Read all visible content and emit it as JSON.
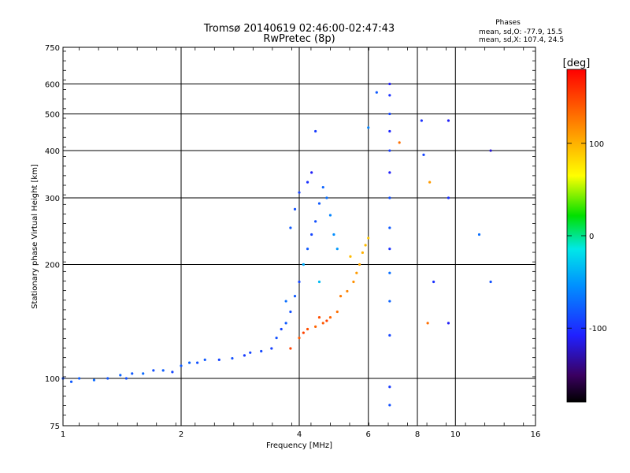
{
  "chart_data": {
    "type": "scatter",
    "title": "Tromsø 20140619 02:46:00-02:47:43",
    "subtitle": "RwPretec (8p)",
    "xlabel": "Frequency [MHz]",
    "ylabel": "Stationary phase Virtual Height [km]",
    "x_scale": "log",
    "y_scale": "log",
    "xlim": [
      1,
      16
    ],
    "ylim": [
      75,
      750
    ],
    "x_ticks": [
      1,
      2,
      4,
      6,
      8,
      10,
      16
    ],
    "x_tick_labels": [
      "1",
      "2",
      "4",
      "6",
      "8",
      "10",
      "16"
    ],
    "y_ticks": [
      75,
      100,
      200,
      300,
      400,
      500,
      600,
      750
    ],
    "y_tick_labels": [
      "75",
      "100",
      "200",
      "300",
      "400",
      "500",
      "600",
      "750"
    ],
    "grid": true,
    "colorbar": {
      "label": "[deg]",
      "range": [
        -180,
        180
      ],
      "ticks": [
        100,
        0,
        -100
      ],
      "tick_labels": [
        "100",
        "0",
        "-100"
      ]
    },
    "phase_stats": {
      "heading": "Phases",
      "o_line": "mean, sd,O: -77.9, 15.5",
      "x_line": "mean, sd,X: 107.4, 24.5"
    },
    "series": [
      {
        "points": [
          [
            1.0,
            100,
            -85
          ],
          [
            1.05,
            98,
            -80
          ],
          [
            1.1,
            100,
            -78
          ],
          [
            1.2,
            99,
            -72
          ],
          [
            1.3,
            100,
            -82
          ],
          [
            1.4,
            102,
            -75
          ],
          [
            1.45,
            100,
            -85
          ],
          [
            1.5,
            103,
            -80
          ],
          [
            1.6,
            103,
            -72
          ],
          [
            1.7,
            105,
            -85
          ],
          [
            1.8,
            105,
            -78
          ],
          [
            1.9,
            104,
            -90
          ],
          [
            2.0,
            108,
            -80
          ],
          [
            2.1,
            110,
            -75
          ],
          [
            2.2,
            110,
            -85
          ],
          [
            2.3,
            112,
            -80
          ],
          [
            2.5,
            112,
            -90
          ],
          [
            2.7,
            113,
            -85
          ],
          [
            2.9,
            115,
            -95
          ],
          [
            3.0,
            117,
            -90
          ],
          [
            3.2,
            118,
            -88
          ],
          [
            3.4,
            120,
            -92
          ],
          [
            3.5,
            128,
            -85
          ],
          [
            3.6,
            135,
            -90
          ],
          [
            3.7,
            140,
            -80
          ],
          [
            3.8,
            150,
            -85
          ],
          [
            3.9,
            165,
            -80
          ],
          [
            4.0,
            180,
            -88
          ],
          [
            4.1,
            200,
            -85
          ],
          [
            4.2,
            220,
            -80
          ],
          [
            4.3,
            240,
            -90
          ],
          [
            4.4,
            260,
            -85
          ],
          [
            4.5,
            290,
            -80
          ],
          [
            4.6,
            320,
            -75
          ],
          [
            4.7,
            300,
            -70
          ],
          [
            4.8,
            270,
            -60
          ],
          [
            4.9,
            240,
            -55
          ],
          [
            5.0,
            220,
            -50
          ],
          [
            4.2,
            330,
            -100
          ],
          [
            4.3,
            350,
            -110
          ],
          [
            4.4,
            450,
            -95
          ],
          [
            3.9,
            280,
            -85
          ],
          [
            3.8,
            250,
            -80
          ],
          [
            4.0,
            310,
            -90
          ],
          [
            4.1,
            200,
            -40
          ],
          [
            4.5,
            180,
            -35
          ],
          [
            3.7,
            160,
            -70
          ]
        ]
      },
      {
        "points": [
          [
            4.0,
            128,
            140
          ],
          [
            4.1,
            132,
            150
          ],
          [
            4.2,
            135,
            145
          ],
          [
            4.4,
            137,
            135
          ],
          [
            4.6,
            140,
            140
          ],
          [
            4.8,
            145,
            135
          ],
          [
            5.0,
            150,
            130
          ],
          [
            4.5,
            145,
            145
          ],
          [
            4.7,
            142,
            150
          ],
          [
            5.1,
            165,
            125
          ],
          [
            5.3,
            170,
            120
          ],
          [
            5.5,
            180,
            115
          ],
          [
            5.6,
            190,
            110
          ],
          [
            5.7,
            200,
            105
          ],
          [
            5.8,
            215,
            100
          ],
          [
            5.9,
            225,
            95
          ],
          [
            6.0,
            235,
            90
          ],
          [
            5.4,
            210,
            95
          ],
          [
            3.8,
            120,
            150
          ]
        ]
      },
      {
        "points": [
          [
            6.8,
            600,
            -110
          ],
          [
            6.8,
            560,
            -100
          ],
          [
            6.8,
            500,
            -90
          ],
          [
            6.8,
            450,
            -105
          ],
          [
            6.8,
            400,
            -95
          ],
          [
            6.8,
            350,
            -110
          ],
          [
            6.8,
            300,
            -85
          ],
          [
            6.8,
            250,
            -80
          ],
          [
            6.8,
            220,
            -100
          ],
          [
            6.8,
            190,
            -70
          ],
          [
            6.8,
            160,
            -75
          ],
          [
            6.8,
            130,
            -90
          ],
          [
            6.8,
            95,
            -95
          ],
          [
            6.8,
            85,
            -85
          ],
          [
            8.5,
            140,
            130
          ],
          [
            9.6,
            480,
            -110
          ],
          [
            9.6,
            300,
            -100
          ],
          [
            9.6,
            140,
            -110
          ],
          [
            12.3,
            400,
            -120
          ],
          [
            12.3,
            180,
            -85
          ],
          [
            11.5,
            240,
            -70
          ],
          [
            8.2,
            480,
            -100
          ],
          [
            8.3,
            390,
            -90
          ],
          [
            8.8,
            180,
            -100
          ],
          [
            6.3,
            570,
            -80
          ],
          [
            6.0,
            460,
            -60
          ],
          [
            7.2,
            420,
            130
          ],
          [
            8.6,
            330,
            110
          ]
        ]
      }
    ]
  }
}
